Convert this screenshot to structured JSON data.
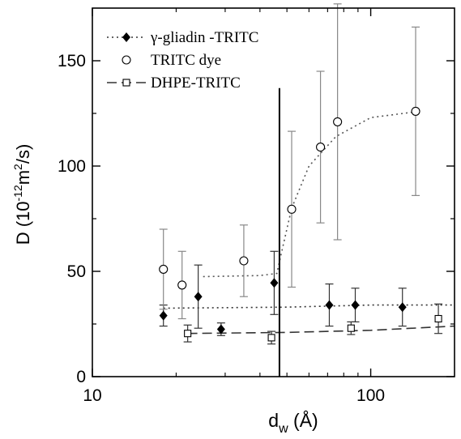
{
  "chart_data": {
    "type": "scatter",
    "x_scale": "log",
    "xlim": [
      10,
      200
    ],
    "ylim": [
      0,
      175
    ],
    "x_ticks": [
      10,
      100
    ],
    "y_ticks": [
      0,
      50,
      100,
      150
    ],
    "xlabel": {
      "main": "d",
      "sub": "w",
      "rest": " (Å)"
    },
    "ylabel": {
      "main": "D  (10",
      "sup1": "-12",
      "mid": "m",
      "sup2": "2",
      "end": "/s)"
    },
    "grid": false,
    "legend_position": "top-left",
    "vline_x": 47,
    "series": [
      {
        "name": "γ-gliadin -TRITC",
        "marker": "filled-diamond",
        "line_style": "dotted",
        "points": [
          {
            "x": 18,
            "y": 29,
            "err": 5
          },
          {
            "x": 24,
            "y": 38,
            "err": 15
          },
          {
            "x": 29,
            "y": 22.5,
            "err": 3
          },
          {
            "x": 45,
            "y": 44.5,
            "err": 15
          },
          {
            "x": 71,
            "y": 34,
            "err": 10
          },
          {
            "x": 88,
            "y": 34,
            "err": 8
          },
          {
            "x": 130,
            "y": 33,
            "err": 9
          }
        ],
        "fit": [
          [
            18,
            32.5
          ],
          [
            50,
            33
          ],
          [
            100,
            34
          ],
          [
            200,
            34
          ]
        ]
      },
      {
        "name": "TRITC dye",
        "marker": "open-circle",
        "line_style": "dotted",
        "points": [
          {
            "x": 18,
            "y": 51,
            "err": 19
          },
          {
            "x": 21,
            "y": 43.5,
            "err": 16
          },
          {
            "x": 35,
            "y": 55,
            "err": 17
          },
          {
            "x": 52,
            "y": 79.5,
            "err": 37
          },
          {
            "x": 66,
            "y": 109,
            "err": 36
          },
          {
            "x": 76,
            "y": 121,
            "err": 56
          },
          {
            "x": 145,
            "y": 126,
            "err": 40
          }
        ],
        "fit": [
          [
            25,
            47.5
          ],
          [
            40,
            48
          ],
          [
            46,
            49
          ],
          [
            48,
            60
          ],
          [
            52,
            80
          ],
          [
            60,
            100
          ],
          [
            75,
            114
          ],
          [
            100,
            123
          ],
          [
            150,
            126
          ]
        ]
      },
      {
        "name": "DHPE-TRITC",
        "marker": "open-square",
        "line_style": "dashed",
        "points": [
          {
            "x": 22,
            "y": 20.5,
            "err": 4
          },
          {
            "x": 44,
            "y": 18.5,
            "err": 3
          },
          {
            "x": 85,
            "y": 23,
            "err": 3
          },
          {
            "x": 175,
            "y": 27.5,
            "err": 7
          }
        ],
        "fit": [
          [
            22,
            20.5
          ],
          [
            50,
            21
          ],
          [
            100,
            22
          ],
          [
            200,
            24
          ]
        ]
      }
    ]
  }
}
